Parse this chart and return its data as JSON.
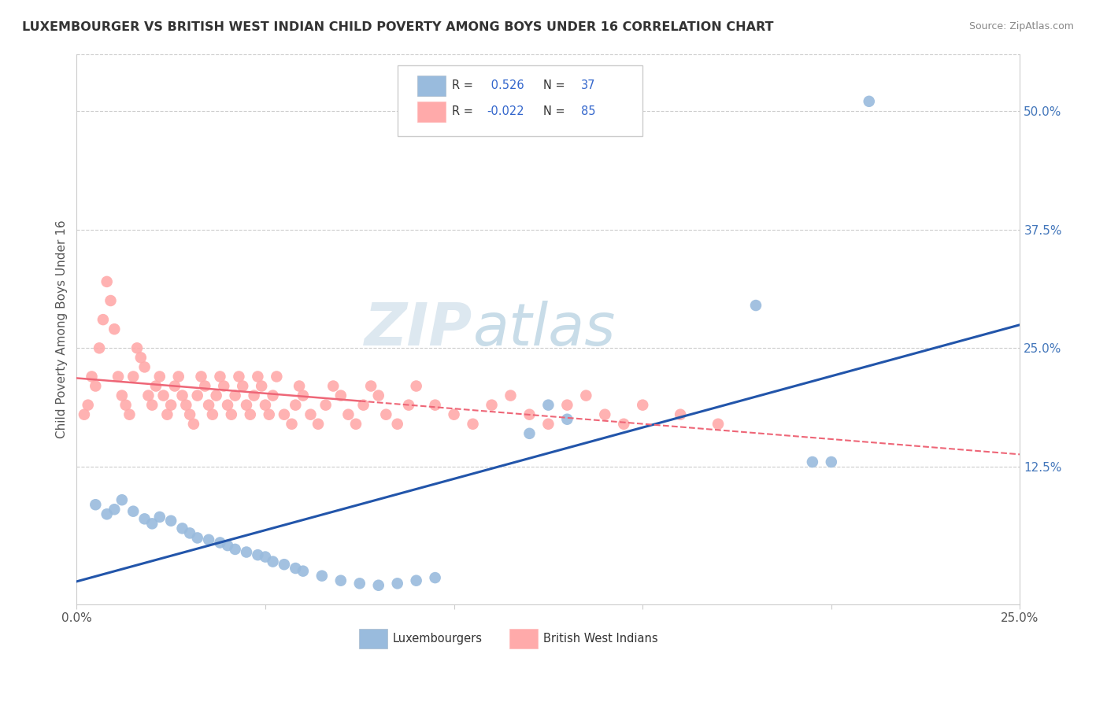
{
  "title": "LUXEMBOURGER VS BRITISH WEST INDIAN CHILD POVERTY AMONG BOYS UNDER 16 CORRELATION CHART",
  "source": "Source: ZipAtlas.com",
  "ylabel": "Child Poverty Among Boys Under 16",
  "xlim": [
    0.0,
    0.25
  ],
  "ylim": [
    -0.02,
    0.56
  ],
  "yticks_right": [
    0.125,
    0.25,
    0.375,
    0.5
  ],
  "yticklabels_right": [
    "12.5%",
    "25.0%",
    "37.5%",
    "50.0%"
  ],
  "blue_color": "#99BBDD",
  "pink_color": "#FFAAAA",
  "blue_line_color": "#2255AA",
  "pink_line_color": "#EE6677",
  "watermark_zip": "ZIP",
  "watermark_atlas": "atlas",
  "blue_R": 0.526,
  "blue_N": 37,
  "pink_R": -0.022,
  "pink_N": 85,
  "blue_x": [
    0.005,
    0.008,
    0.01,
    0.012,
    0.015,
    0.018,
    0.02,
    0.022,
    0.025,
    0.028,
    0.03,
    0.032,
    0.035,
    0.038,
    0.04,
    0.042,
    0.045,
    0.048,
    0.05,
    0.052,
    0.055,
    0.058,
    0.06,
    0.065,
    0.07,
    0.075,
    0.08,
    0.085,
    0.09,
    0.095,
    0.12,
    0.125,
    0.13,
    0.18,
    0.195,
    0.2,
    0.21
  ],
  "blue_y": [
    0.085,
    0.075,
    0.08,
    0.09,
    0.078,
    0.07,
    0.065,
    0.072,
    0.068,
    0.06,
    0.055,
    0.05,
    0.048,
    0.045,
    0.042,
    0.038,
    0.035,
    0.032,
    0.03,
    0.025,
    0.022,
    0.018,
    0.015,
    0.01,
    0.005,
    0.002,
    0.0,
    0.002,
    0.005,
    0.008,
    0.16,
    0.19,
    0.175,
    0.295,
    0.13,
    0.13,
    0.51
  ],
  "pink_x": [
    0.002,
    0.003,
    0.004,
    0.005,
    0.006,
    0.007,
    0.008,
    0.009,
    0.01,
    0.011,
    0.012,
    0.013,
    0.014,
    0.015,
    0.016,
    0.017,
    0.018,
    0.019,
    0.02,
    0.021,
    0.022,
    0.023,
    0.024,
    0.025,
    0.026,
    0.027,
    0.028,
    0.029,
    0.03,
    0.031,
    0.032,
    0.033,
    0.034,
    0.035,
    0.036,
    0.037,
    0.038,
    0.039,
    0.04,
    0.041,
    0.042,
    0.043,
    0.044,
    0.045,
    0.046,
    0.047,
    0.048,
    0.049,
    0.05,
    0.051,
    0.052,
    0.053,
    0.055,
    0.057,
    0.058,
    0.059,
    0.06,
    0.062,
    0.064,
    0.066,
    0.068,
    0.07,
    0.072,
    0.074,
    0.076,
    0.078,
    0.08,
    0.082,
    0.085,
    0.088,
    0.09,
    0.095,
    0.1,
    0.105,
    0.11,
    0.115,
    0.12,
    0.125,
    0.13,
    0.135,
    0.14,
    0.145,
    0.15,
    0.16,
    0.17
  ],
  "pink_y": [
    0.18,
    0.19,
    0.22,
    0.21,
    0.25,
    0.28,
    0.32,
    0.3,
    0.27,
    0.22,
    0.2,
    0.19,
    0.18,
    0.22,
    0.25,
    0.24,
    0.23,
    0.2,
    0.19,
    0.21,
    0.22,
    0.2,
    0.18,
    0.19,
    0.21,
    0.22,
    0.2,
    0.19,
    0.18,
    0.17,
    0.2,
    0.22,
    0.21,
    0.19,
    0.18,
    0.2,
    0.22,
    0.21,
    0.19,
    0.18,
    0.2,
    0.22,
    0.21,
    0.19,
    0.18,
    0.2,
    0.22,
    0.21,
    0.19,
    0.18,
    0.2,
    0.22,
    0.18,
    0.17,
    0.19,
    0.21,
    0.2,
    0.18,
    0.17,
    0.19,
    0.21,
    0.2,
    0.18,
    0.17,
    0.19,
    0.21,
    0.2,
    0.18,
    0.17,
    0.19,
    0.21,
    0.19,
    0.18,
    0.17,
    0.19,
    0.2,
    0.18,
    0.17,
    0.19,
    0.2,
    0.18,
    0.17,
    0.19,
    0.18,
    0.17
  ]
}
